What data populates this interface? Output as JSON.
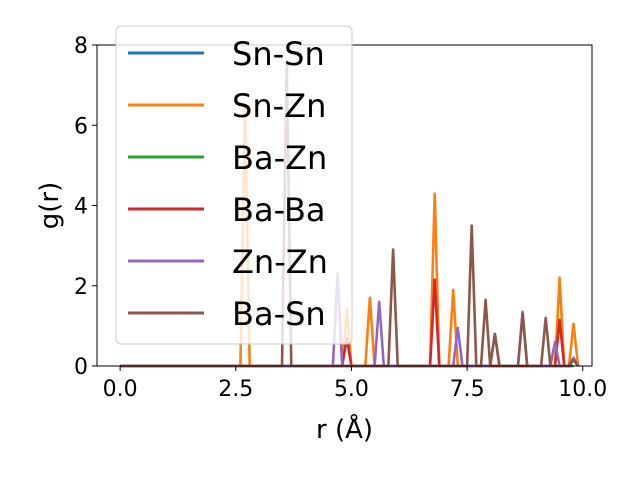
{
  "chart_data": {
    "type": "line",
    "title": "",
    "xlabel": "r (Å)",
    "ylabel": "g(r)",
    "xlim": [
      -0.5,
      10.2
    ],
    "ylim": [
      0,
      8
    ],
    "xticks": [
      0.0,
      2.5,
      5.0,
      7.5,
      10.0
    ],
    "xtick_labels": [
      "0.0",
      "2.5",
      "5.0",
      "7.5",
      "10.0"
    ],
    "yticks": [
      0,
      2,
      4,
      6,
      8
    ],
    "ytick_labels": [
      "0",
      "2",
      "4",
      "6",
      "8"
    ],
    "legend_position": "top-left",
    "series": [
      {
        "name": "Sn-Sn",
        "color": "#1f77b4",
        "x": [
          0,
          9.8
        ],
        "y": [
          0,
          0
        ]
      },
      {
        "name": "Sn-Zn",
        "color": "#ff7f0e",
        "x": [
          0,
          2.6,
          2.7,
          2.8,
          4.8,
          4.9,
          5.0,
          5.3,
          5.4,
          5.5,
          6.7,
          6.8,
          6.9,
          7.1,
          7.2,
          7.3,
          9.4,
          9.5,
          9.6,
          9.7,
          9.8,
          9.9
        ],
        "y": [
          0,
          0,
          6.5,
          0,
          0,
          1.4,
          0,
          0,
          1.7,
          0,
          0,
          4.3,
          0,
          0,
          1.9,
          0,
          0,
          2.2,
          0,
          0,
          1.05,
          0
        ]
      },
      {
        "name": "Ba-Zn",
        "color": "#2ca02c",
        "x": [
          0,
          9.8
        ],
        "y": [
          0,
          0
        ]
      },
      {
        "name": "Ba-Ba",
        "color": "#d62728",
        "x": [
          0,
          4.8,
          4.9,
          5.0,
          6.7,
          6.8,
          6.9,
          9.4,
          9.5,
          9.6,
          9.7,
          9.8,
          9.9
        ],
        "y": [
          0,
          0,
          0.7,
          0,
          0,
          2.15,
          0,
          0,
          1.15,
          0,
          0,
          0.2,
          0
        ]
      },
      {
        "name": "Zn-Zn",
        "color": "#9467bd",
        "x": [
          0,
          4.6,
          4.7,
          4.8,
          5.5,
          5.6,
          5.7,
          7.2,
          7.3,
          7.4,
          8.0,
          8.1,
          8.2,
          8.6,
          8.7,
          8.8,
          9.3,
          9.4,
          9.5,
          9.7,
          9.8,
          9.9
        ],
        "y": [
          0,
          0,
          2.3,
          0,
          0,
          1.6,
          0,
          0,
          0.95,
          0,
          0,
          0.8,
          0,
          0,
          1.35,
          0,
          0,
          0.6,
          0,
          0,
          0.2,
          0
        ]
      },
      {
        "name": "Ba-Sn",
        "color": "#8c564b",
        "x": [
          0,
          3.5,
          3.6,
          3.7,
          5.8,
          5.9,
          6.0,
          7.5,
          7.6,
          7.7,
          7.8,
          7.9,
          8.0,
          8.1,
          8.2,
          8.6,
          8.7,
          8.8,
          9.1,
          9.2,
          9.3,
          9.7,
          9.8,
          9.9
        ],
        "y": [
          0,
          0,
          7.6,
          0,
          0,
          2.9,
          0,
          0,
          3.5,
          0,
          0,
          1.65,
          0,
          0.8,
          0,
          0,
          1.3,
          0,
          0,
          1.2,
          0,
          0,
          0.15,
          0
        ]
      }
    ]
  }
}
